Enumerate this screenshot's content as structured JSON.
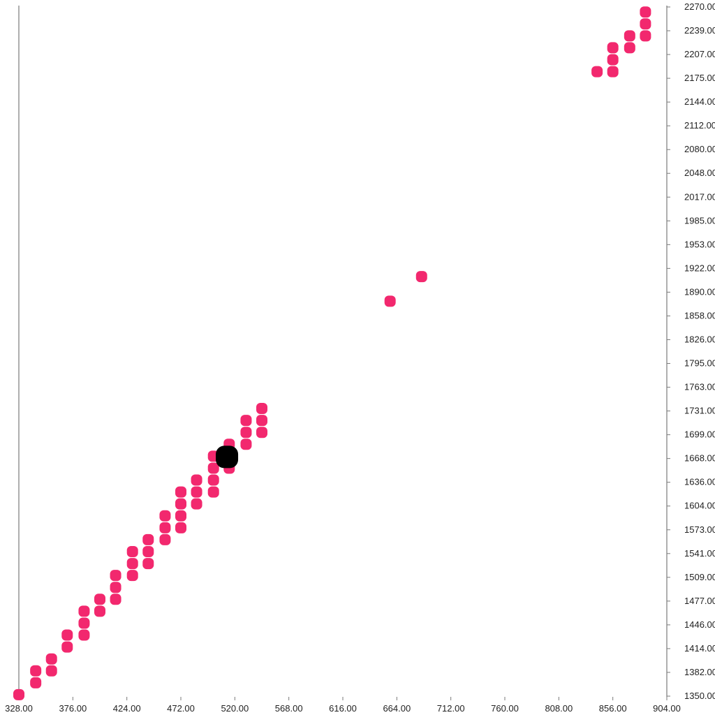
{
  "chart_data": {
    "type": "scatter",
    "title": "",
    "xlabel": "",
    "ylabel": "",
    "grid": false,
    "legend": "none",
    "xlim": [
      328,
      904
    ],
    "ylim": [
      1350,
      2270
    ],
    "x_ticks": [
      "328.00",
      "376.00",
      "424.00",
      "472.00",
      "520.00",
      "568.00",
      "616.00",
      "664.00",
      "712.00",
      "760.00",
      "808.00",
      "856.00",
      "904.00"
    ],
    "y_ticks": [
      "2270.00",
      "2239.00",
      "2207.00",
      "2175.00",
      "2144.00",
      "2112.00",
      "2080.00",
      "2048.00",
      "2017.00",
      "1985.00",
      "1953.00",
      "1922.00",
      "1890.00",
      "1858.00",
      "1826.00",
      "1795.00",
      "1763.00",
      "1731.00",
      "1699.00",
      "1668.00",
      "1636.00",
      "1604.00",
      "1573.00",
      "1541.00",
      "1509.00",
      "1477.00",
      "1446.00",
      "1414.00",
      "1382.00",
      "1350.00"
    ],
    "series": [
      {
        "color": "#f2286e",
        "points": [
          [
            328,
            1351
          ],
          [
            343,
            1367
          ],
          [
            343,
            1383
          ],
          [
            357,
            1383
          ],
          [
            357,
            1399
          ],
          [
            371,
            1415
          ],
          [
            371,
            1431
          ],
          [
            386,
            1431
          ],
          [
            386,
            1447
          ],
          [
            386,
            1463
          ],
          [
            400,
            1463
          ],
          [
            400,
            1479
          ],
          [
            414,
            1479
          ],
          [
            414,
            1495
          ],
          [
            414,
            1511
          ],
          [
            429,
            1511
          ],
          [
            429,
            1527
          ],
          [
            429,
            1543
          ],
          [
            443,
            1527
          ],
          [
            443,
            1543
          ],
          [
            443,
            1559
          ],
          [
            458,
            1559
          ],
          [
            458,
            1575
          ],
          [
            458,
            1591
          ],
          [
            472,
            1575
          ],
          [
            472,
            1591
          ],
          [
            472,
            1607
          ],
          [
            472,
            1623
          ],
          [
            486,
            1607
          ],
          [
            486,
            1623
          ],
          [
            486,
            1639
          ],
          [
            501,
            1623
          ],
          [
            501,
            1639
          ],
          [
            501,
            1655
          ],
          [
            501,
            1671
          ],
          [
            515,
            1655
          ],
          [
            515,
            1687
          ],
          [
            530,
            1687
          ],
          [
            530,
            1703
          ],
          [
            530,
            1719
          ],
          [
            544,
            1703
          ],
          [
            544,
            1719
          ],
          [
            544,
            1735
          ],
          [
            658,
            1879
          ],
          [
            686,
            1912
          ],
          [
            842,
            2187
          ],
          [
            856,
            2187
          ],
          [
            856,
            2203
          ],
          [
            856,
            2219
          ],
          [
            871,
            2219
          ],
          [
            871,
            2235
          ],
          [
            885,
            2235
          ],
          [
            885,
            2251
          ],
          [
            885,
            2267
          ]
        ]
      }
    ],
    "highlight": {
      "x": 513,
      "y": 1670,
      "color": "#000000"
    }
  }
}
